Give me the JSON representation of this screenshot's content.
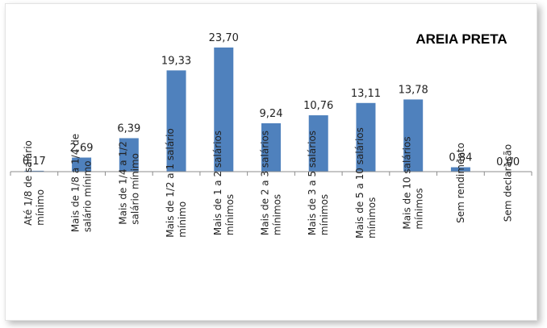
{
  "chart_data": {
    "type": "bar",
    "title": "AREIA PRETA",
    "xlabel": "",
    "ylabel": "",
    "ylim": [
      0,
      25
    ],
    "grid": false,
    "legend": "none",
    "bar_color": "#4f81bd",
    "categories": [
      [
        "Até 1/8 de salário",
        "mínimo"
      ],
      [
        "Mais de 1/8 a 1/4 de",
        "salário mínimo"
      ],
      [
        "Mais de 1/4 a 1/2",
        "salário mínimo"
      ],
      [
        "Mais de 1/2 a 1 salário",
        "mínimo"
      ],
      [
        "Mais de 1 a 2 salários",
        "mínimos"
      ],
      [
        "Mais de 2 a 3 salários",
        "mínimos"
      ],
      [
        "Mais de 3 a 5 salários",
        "mínimos"
      ],
      [
        "Mais de 5 a 10 salários",
        "mínimos"
      ],
      [
        "Mais de 10 salários",
        "mínimos"
      ],
      [
        "Sem rendimento"
      ],
      [
        "Sem declaração"
      ]
    ],
    "values": [
      0.17,
      2.69,
      6.39,
      19.33,
      23.7,
      9.24,
      10.76,
      13.11,
      13.78,
      0.84,
      0.0
    ],
    "value_labels": [
      "0,17",
      "2,69",
      "6,39",
      "19,33",
      "23,70",
      "9,24",
      "10,76",
      "13,11",
      "13,78",
      "0,84",
      "0,00"
    ]
  }
}
